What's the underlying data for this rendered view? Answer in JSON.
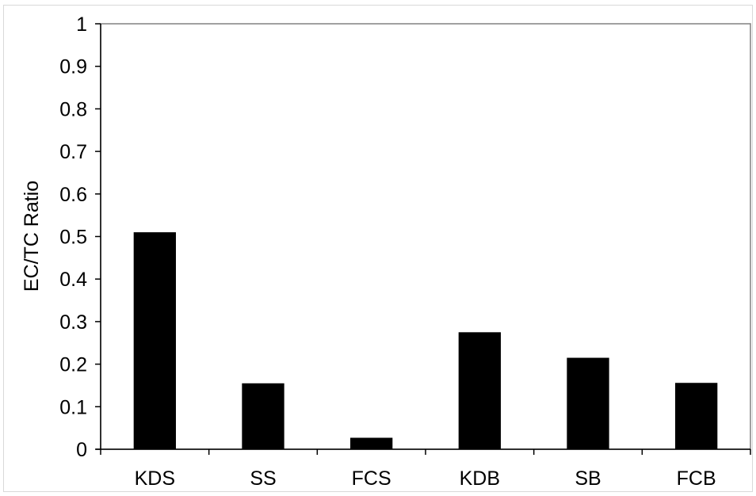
{
  "chart_data": {
    "type": "bar",
    "title": "",
    "xlabel": "",
    "ylabel": "EC/TC Ratio",
    "categories": [
      "KDS",
      "SS",
      "FCS",
      "KDB",
      "SB",
      "FCB"
    ],
    "values": [
      0.51,
      0.155,
      0.027,
      0.275,
      0.215,
      0.156
    ],
    "ylim": [
      0,
      1
    ],
    "yticks": [
      0,
      0.1,
      0.2,
      0.3,
      0.4,
      0.5,
      0.6,
      0.7,
      0.8,
      0.9,
      1
    ],
    "ytick_labels": [
      "0",
      "0.1",
      "0.2",
      "0.3",
      "0.4",
      "0.5",
      "0.6",
      "0.7",
      "0.8",
      "0.9",
      "1"
    ],
    "grid": false,
    "legend": "none",
    "colors": {
      "bar": "#000000",
      "axis": "#000000",
      "frame": "#808080",
      "outer_border": "#d9d9d9"
    }
  }
}
